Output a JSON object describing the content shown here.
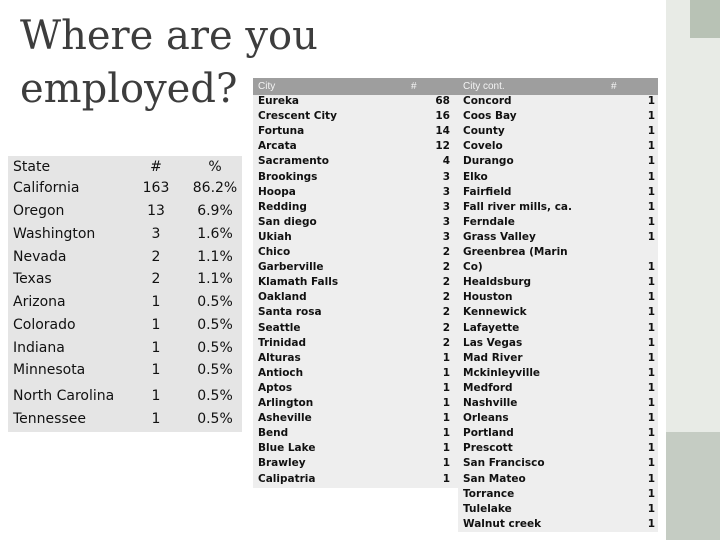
{
  "title": "Where are you\nemployed?",
  "state_table": {
    "headers": {
      "name": "State",
      "count": "#",
      "percent": "%"
    },
    "rows": [
      {
        "name": "California",
        "count": "163",
        "percent": "86.2%"
      },
      {
        "name": "Oregon",
        "count": "13",
        "percent": "6.9%"
      },
      {
        "name": "Washington",
        "count": "3",
        "percent": "1.6%"
      },
      {
        "name": "Nevada",
        "count": "2",
        "percent": "1.1%"
      },
      {
        "name": "Texas",
        "count": "2",
        "percent": "1.1%"
      },
      {
        "name": "Arizona",
        "count": "1",
        "percent": "0.5%"
      },
      {
        "name": "Colorado",
        "count": "1",
        "percent": "0.5%"
      },
      {
        "name": "Indiana",
        "count": "1",
        "percent": "0.5%"
      },
      {
        "name": "Minnesota",
        "count": "1",
        "percent": "0.5%"
      },
      {
        "name": "North Carolina",
        "count": "1",
        "percent": "0.5%"
      },
      {
        "name": "Tennessee",
        "count": "1",
        "percent": "0.5%"
      }
    ]
  },
  "city_table_left": {
    "headers": {
      "name": "City",
      "count": "#"
    },
    "rows": [
      {
        "name": "Eureka",
        "count": "68"
      },
      {
        "name": "Crescent City",
        "count": "16"
      },
      {
        "name": "Fortuna",
        "count": "14"
      },
      {
        "name": "Arcata",
        "count": "12"
      },
      {
        "name": "Sacramento",
        "count": "4"
      },
      {
        "name": "Brookings",
        "count": "3"
      },
      {
        "name": "Hoopa",
        "count": "3"
      },
      {
        "name": "Redding",
        "count": "3"
      },
      {
        "name": "San diego",
        "count": "3"
      },
      {
        "name": "Ukiah",
        "count": "3"
      },
      {
        "name": "Chico",
        "count": "2"
      },
      {
        "name": "Garberville",
        "count": "2"
      },
      {
        "name": "Klamath Falls",
        "count": "2"
      },
      {
        "name": "Oakland",
        "count": "2"
      },
      {
        "name": "Santa rosa",
        "count": "2"
      },
      {
        "name": "Seattle",
        "count": "2"
      },
      {
        "name": "Trinidad",
        "count": "2"
      },
      {
        "name": "Alturas",
        "count": "1"
      },
      {
        "name": "Antioch",
        "count": "1"
      },
      {
        "name": "Aptos",
        "count": "1"
      },
      {
        "name": "Arlington",
        "count": "1"
      },
      {
        "name": "Asheville",
        "count": "1"
      },
      {
        "name": "Bend",
        "count": "1"
      },
      {
        "name": "Blue Lake",
        "count": "1"
      },
      {
        "name": "Brawley",
        "count": "1"
      },
      {
        "name": "Calipatria",
        "count": "1"
      }
    ]
  },
  "city_table_right": {
    "headers": {
      "name": "City cont.",
      "count": "#"
    },
    "rows": [
      {
        "name": "Concord",
        "count": "1"
      },
      {
        "name": "Coos Bay",
        "count": "1"
      },
      {
        "name": "County",
        "count": "1"
      },
      {
        "name": "Covelo",
        "count": "1"
      },
      {
        "name": "Durango",
        "count": "1"
      },
      {
        "name": "Elko",
        "count": "1"
      },
      {
        "name": "Fairfield",
        "count": "1"
      },
      {
        "name": "Fall river mills, ca.",
        "count": "1"
      },
      {
        "name": "Ferndale",
        "count": "1"
      },
      {
        "name": "Grass Valley",
        "count": "1"
      },
      {
        "name": "Greenbrea (Marin",
        "count": ""
      },
      {
        "name": "Co)",
        "count": "1"
      },
      {
        "name": "Healdsburg",
        "count": "1"
      },
      {
        "name": "Houston",
        "count": "1"
      },
      {
        "name": "Kennewick",
        "count": "1"
      },
      {
        "name": "Lafayette",
        "count": "1"
      },
      {
        "name": "Las Vegas",
        "count": "1"
      },
      {
        "name": "Mad River",
        "count": "1"
      },
      {
        "name": "Mckinleyville",
        "count": "1"
      },
      {
        "name": "Medford",
        "count": "1"
      },
      {
        "name": "Nashville",
        "count": "1"
      },
      {
        "name": "Orleans",
        "count": "1"
      },
      {
        "name": "Portland",
        "count": "1"
      },
      {
        "name": "Prescott",
        "count": "1"
      },
      {
        "name": "San Francisco",
        "count": "1"
      },
      {
        "name": "San Mateo",
        "count": "1"
      },
      {
        "name": "Torrance",
        "count": "1"
      },
      {
        "name": "Tulelake",
        "count": "1"
      },
      {
        "name": "Walnut creek",
        "count": "1"
      }
    ]
  }
}
